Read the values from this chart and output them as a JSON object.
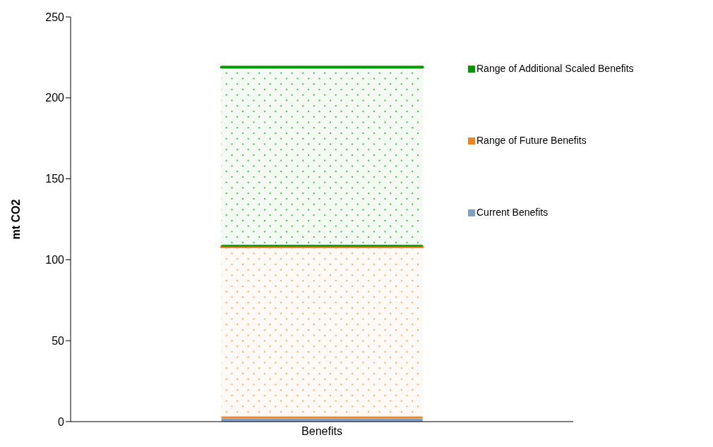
{
  "chart_data": {
    "type": "bar",
    "stacked": true,
    "ylabel": "mt CO2",
    "categories": [
      "Benefits"
    ],
    "ylim": [
      0,
      250
    ],
    "yticks": [
      0,
      50,
      100,
      150,
      200,
      250
    ],
    "grid": false,
    "legend": "right",
    "series": [
      {
        "name": "Current Benefits",
        "color": "#7f9fc4",
        "values": [
          2
        ]
      },
      {
        "name": "Range of Future Benefits",
        "color": "#f58220",
        "values": [
          106
        ]
      },
      {
        "name": "Range of Additional Scaled Benefits",
        "color": "#009900",
        "values": [
          111
        ]
      }
    ]
  }
}
